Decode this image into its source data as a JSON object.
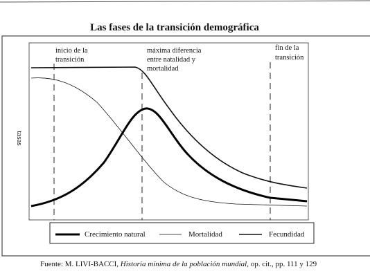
{
  "title": "Las fases de la transición demográfica",
  "y_axis_label": "tasas",
  "annotations": [
    {
      "lines": [
        "inicio de la",
        "transición"
      ]
    },
    {
      "lines": [
        "máxima diferencia",
        "entre natalidad y",
        "mortalidad"
      ]
    },
    {
      "lines": [
        "fin de la",
        "transición"
      ]
    }
  ],
  "legend": [
    "Crecimiento natural",
    "Mortalidad",
    "Fecundidad"
  ],
  "source": {
    "prefix": "Fuente: M. LIVI-BACCI, ",
    "work": "Historia mínima de la población mundial",
    "suffix": ", op. cit., pp. 111 y 129"
  }
}
